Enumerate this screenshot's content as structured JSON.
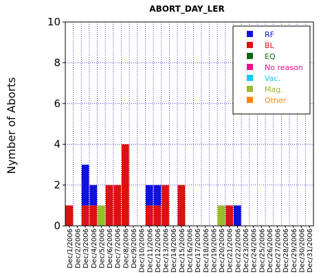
{
  "chart_data": {
    "type": "bar",
    "stacked": true,
    "title": "ABORT_DAY_LER",
    "xlabel": "",
    "ylabel": "Nymber of Aborts",
    "ylim": [
      0,
      10
    ],
    "yticks": [
      "0",
      "2",
      "4",
      "6",
      "8",
      "10"
    ],
    "grid": true,
    "legend_position": "top-right",
    "categories": [
      "Dec/1/2006",
      "Dec/2/2006",
      "Dec/3/2006",
      "Dec/4/2006",
      "Dec/5/2006",
      "Dec/6/2006",
      "Dec/7/2006",
      "Dec/8/2006",
      "Dec/9/2006",
      "Dec/10/2006",
      "Dec/11/2006",
      "Dec/12/2006",
      "Dec/13/2006",
      "Dec/14/2006",
      "Dec/15/2006",
      "Dec/16/2006",
      "Dec/17/2006",
      "Dec/18/2006",
      "Dec/19/2006",
      "Dec/20/2006",
      "Dec/21/2006",
      "Dec/22/2006",
      "Dec/23/2006",
      "Dec/24/2006",
      "Dec/25/2006",
      "Dec/26/2006",
      "Dec/27/2006",
      "Dec/28/2006",
      "Dec/29/2006",
      "Dec/30/2006",
      "Dec/31/2006"
    ],
    "series": [
      {
        "name": "BL",
        "color": "#dd1111",
        "values": [
          1,
          0,
          1,
          1,
          0,
          2,
          2,
          4,
          0,
          0,
          1,
          1,
          2,
          0,
          2,
          0,
          0,
          0,
          0,
          0,
          1,
          0,
          0,
          0,
          0,
          0,
          0,
          0,
          0,
          0,
          0
        ]
      },
      {
        "name": "Mag.",
        "color": "#99bb33",
        "values": [
          0,
          0,
          0,
          0,
          1,
          0,
          0,
          0,
          0,
          0,
          0,
          0,
          0,
          0,
          0,
          0,
          0,
          0,
          0,
          1,
          0,
          0,
          0,
          0,
          0,
          0,
          0,
          0,
          0,
          0,
          0
        ]
      },
      {
        "name": "RF",
        "color": "#1111dd",
        "values": [
          0,
          0,
          2,
          1,
          0,
          0,
          0,
          0,
          0,
          0,
          1,
          1,
          0,
          0,
          0,
          0,
          0,
          0,
          0,
          0,
          0,
          1,
          0,
          0,
          0,
          0,
          0,
          0,
          0,
          0,
          0
        ]
      },
      {
        "name": "EQ",
        "color": "#116611",
        "values": [
          0,
          0,
          0,
          0,
          0,
          0,
          0,
          0,
          0,
          0,
          0,
          0,
          0,
          0,
          0,
          0,
          0,
          0,
          0,
          0,
          0,
          0,
          0,
          0,
          0,
          0,
          0,
          0,
          0,
          0,
          0
        ]
      },
      {
        "name": "No reason",
        "color": "#ee1188",
        "values": [
          0,
          0,
          0,
          0,
          0,
          0,
          0,
          0,
          0,
          0,
          0,
          0,
          0,
          0,
          0,
          0,
          0,
          0,
          0,
          0,
          0,
          0,
          0,
          0,
          0,
          0,
          0,
          0,
          0,
          0,
          0
        ]
      },
      {
        "name": "Vac.",
        "color": "#11ccee",
        "values": [
          0,
          0,
          0,
          0,
          0,
          0,
          0,
          0,
          0,
          0,
          0,
          0,
          0,
          0,
          0,
          0,
          0,
          0,
          0,
          0,
          0,
          0,
          0,
          0,
          0,
          0,
          0,
          0,
          0,
          0,
          0
        ]
      },
      {
        "name": "Other",
        "color": "#ff8811",
        "values": [
          0,
          0,
          0,
          0,
          0,
          0,
          0,
          0,
          0,
          0,
          0,
          0,
          0,
          0,
          0,
          0,
          0,
          0,
          0,
          0,
          0,
          0,
          0,
          0,
          0,
          0,
          0,
          0,
          0,
          0,
          0
        ]
      }
    ],
    "legend": [
      {
        "label": "RF",
        "color": "#1111dd"
      },
      {
        "label": "BL",
        "color": "#dd1111"
      },
      {
        "label": "EQ",
        "color": "#116611"
      },
      {
        "label": "No reason",
        "color": "#ee1188"
      },
      {
        "label": "Vac.",
        "color": "#11ccee"
      },
      {
        "label": "Mag.",
        "color": "#99bb33"
      },
      {
        "label": "Other",
        "color": "#ff8811"
      }
    ],
    "colors": {
      "grid": "#0000cc",
      "axis": "#000000"
    }
  }
}
